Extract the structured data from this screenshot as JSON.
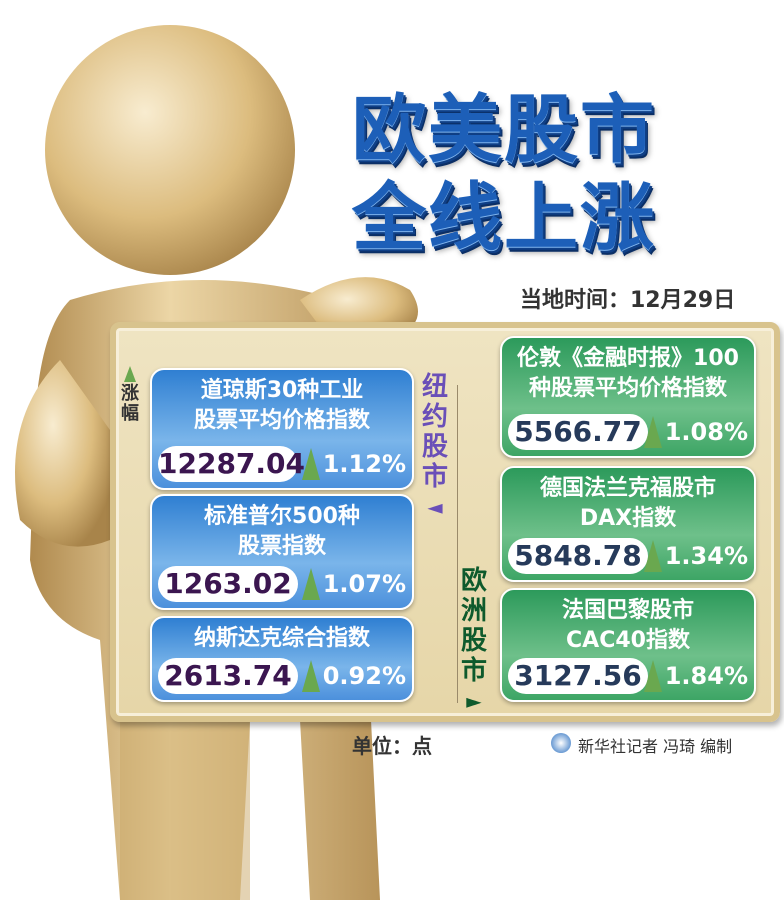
{
  "title": {
    "line1": "欧美股市",
    "line2": "全线上涨"
  },
  "date": "当地时间：12月29日",
  "legend": {
    "label": "涨幅",
    "icon": "up-triangle-icon"
  },
  "new_york": {
    "label": "纽约股市",
    "arrow": "◄",
    "color": "#6a4fb8",
    "indices": [
      {
        "name1": "道琼斯30种工业",
        "name2": "股票平均价格指数",
        "value": "12287.04",
        "change": "1.12%"
      },
      {
        "name1": "标准普尔500种",
        "name2": "股票指数",
        "value": "1263.02",
        "change": "1.07%"
      },
      {
        "name1": "纳斯达克综合指数",
        "name2": "",
        "value": "2613.74",
        "change": "0.92%"
      }
    ]
  },
  "europe": {
    "label": "欧洲股市",
    "arrow": "►",
    "color": "#0e5a2c",
    "indices": [
      {
        "name1": "伦敦《金融时报》100",
        "name2": "种股票平均价格指数",
        "value": "5566.77",
        "change": "1.08%"
      },
      {
        "name1": "德国法兰克福股市",
        "name2": "DAX指数",
        "value": "5848.78",
        "change": "1.34%"
      },
      {
        "name1": "法国巴黎股市",
        "name2": "CAC40指数",
        "value": "3127.56",
        "change": "1.84%"
      }
    ]
  },
  "unit": "单位：点",
  "credit": "新华社记者 冯琦 编制",
  "colors": {
    "title": "#1d5fb8",
    "blue_card": "#3f8ad8",
    "green_card": "#3da565",
    "figure": "#d9bb7c"
  }
}
